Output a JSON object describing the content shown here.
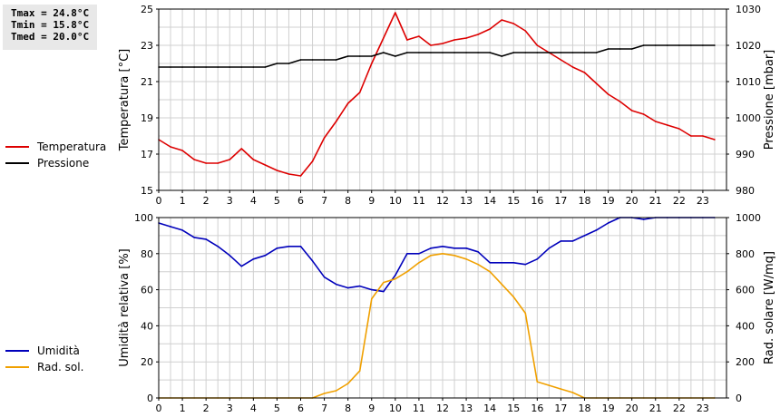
{
  "stats": {
    "tmax": "Tmax = 24.8°C",
    "tmin": "Tmin = 15.8°C",
    "tmed": "Tmed = 20.0°C"
  },
  "colors": {
    "temperature": "#dd0000",
    "pressure": "#000000",
    "humidity": "#0000bb",
    "solar": "#f0a000",
    "grid": "#d0d0d0"
  },
  "legend_top": [
    {
      "label": "Temperatura",
      "color": "#dd0000"
    },
    {
      "label": "Pressione",
      "color": "#000000"
    }
  ],
  "legend_bottom": [
    {
      "label": "Umidità",
      "color": "#0000bb"
    },
    {
      "label": "Rad. sol.",
      "color": "#f0a000"
    }
  ],
  "chart_data": [
    {
      "type": "line",
      "xlabel": "",
      "xlim": [
        0,
        24
      ],
      "xticks": [
        0,
        1,
        2,
        3,
        4,
        5,
        6,
        7,
        8,
        9,
        10,
        11,
        12,
        13,
        14,
        15,
        16,
        17,
        18,
        19,
        20,
        21,
        22,
        23
      ],
      "ylabel_left": "Temperatura [°C]",
      "ylim_left": [
        15,
        25
      ],
      "yticks_left": [
        15,
        17,
        19,
        21,
        23,
        25
      ],
      "ylabel_right": "Pressione [mbar]",
      "ylim_right": [
        980,
        1030
      ],
      "yticks_right": [
        980,
        990,
        1000,
        1010,
        1020,
        1030
      ],
      "grid": true,
      "series": [
        {
          "name": "Temperatura",
          "axis": "left",
          "color": "#dd0000",
          "x": [
            0,
            0.5,
            1,
            1.5,
            2,
            2.5,
            3,
            3.5,
            4,
            4.5,
            5,
            5.5,
            6,
            6.5,
            7,
            7.5,
            8,
            8.5,
            9,
            9.5,
            10,
            10.5,
            11,
            11.5,
            12,
            12.5,
            13,
            13.5,
            14,
            14.5,
            15,
            15.5,
            16,
            16.5,
            17,
            17.5,
            18,
            18.5,
            19,
            19.5,
            20,
            20.5,
            21,
            21.5,
            22,
            22.5,
            23,
            23.5
          ],
          "y": [
            17.8,
            17.4,
            17.2,
            16.7,
            16.5,
            16.5,
            16.7,
            17.3,
            16.7,
            16.4,
            16.1,
            15.9,
            15.8,
            16.6,
            17.9,
            18.8,
            19.8,
            20.4,
            22.0,
            23.4,
            24.8,
            23.3,
            23.5,
            23.0,
            23.1,
            23.3,
            23.4,
            23.6,
            23.9,
            24.4,
            24.2,
            23.8,
            23.0,
            22.6,
            22.2,
            21.8,
            21.5,
            20.9,
            20.3,
            19.9,
            19.4,
            19.2,
            18.8,
            18.6,
            18.4,
            18.0,
            18.0,
            17.8
          ]
        },
        {
          "name": "Pressione",
          "axis": "right",
          "color": "#000000",
          "x": [
            0,
            0.5,
            1,
            1.5,
            2,
            2.5,
            3,
            3.5,
            4,
            4.5,
            5,
            5.5,
            6,
            6.5,
            7,
            7.5,
            8,
            8.5,
            9,
            9.5,
            10,
            10.5,
            11,
            11.5,
            12,
            12.5,
            13,
            13.5,
            14,
            14.5,
            15,
            15.5,
            16,
            16.5,
            17,
            17.5,
            18,
            18.5,
            19,
            19.5,
            20,
            20.5,
            21,
            21.5,
            22,
            22.5,
            23,
            23.5
          ],
          "y": [
            1014,
            1014,
            1014,
            1014,
            1014,
            1014,
            1014,
            1014,
            1014,
            1014,
            1015,
            1015,
            1016,
            1016,
            1016,
            1016,
            1017,
            1017,
            1017,
            1018,
            1017,
            1018,
            1018,
            1018,
            1018,
            1018,
            1018,
            1018,
            1018,
            1017,
            1018,
            1018,
            1018,
            1018,
            1018,
            1018,
            1018,
            1018,
            1019,
            1019,
            1019,
            1020,
            1020,
            1020,
            1020,
            1020,
            1020,
            1020
          ]
        }
      ]
    },
    {
      "type": "line",
      "xlabel": "",
      "xlim": [
        0,
        24
      ],
      "xticks": [
        0,
        1,
        2,
        3,
        4,
        5,
        6,
        7,
        8,
        9,
        10,
        11,
        12,
        13,
        14,
        15,
        16,
        17,
        18,
        19,
        20,
        21,
        22,
        23
      ],
      "ylabel_left": "Umidità relativa [%]",
      "ylim_left": [
        0,
        100
      ],
      "yticks_left": [
        0,
        20,
        40,
        60,
        80,
        100
      ],
      "ylabel_right": "Rad. solare [W/mq]",
      "ylim_right": [
        0,
        1000
      ],
      "yticks_right": [
        0,
        200,
        400,
        600,
        800,
        1000
      ],
      "grid": true,
      "series": [
        {
          "name": "Umidità",
          "axis": "left",
          "color": "#0000bb",
          "x": [
            0,
            0.5,
            1,
            1.5,
            2,
            2.5,
            3,
            3.5,
            4,
            4.5,
            5,
            5.5,
            6,
            6.5,
            7,
            7.5,
            8,
            8.5,
            9,
            9.5,
            10,
            10.5,
            11,
            11.5,
            12,
            12.5,
            13,
            13.5,
            14,
            14.5,
            15,
            15.5,
            16,
            16.5,
            17,
            17.5,
            18,
            18.5,
            19,
            19.5,
            20,
            20.5,
            21,
            21.5,
            22,
            22.5,
            23,
            23.5
          ],
          "y": [
            97,
            95,
            93,
            89,
            88,
            84,
            79,
            73,
            77,
            79,
            83,
            84,
            84,
            76,
            67,
            63,
            61,
            62,
            60,
            59,
            68,
            80,
            80,
            83,
            84,
            83,
            83,
            81,
            75,
            75,
            75,
            74,
            77,
            83,
            87,
            87,
            90,
            93,
            97,
            100,
            100,
            99,
            100,
            100,
            100,
            100,
            100,
            100
          ]
        },
        {
          "name": "Rad. sol.",
          "axis": "right",
          "color": "#f0a000",
          "x": [
            0,
            0.5,
            1,
            1.5,
            2,
            2.5,
            3,
            3.5,
            4,
            4.5,
            5,
            5.5,
            6,
            6.5,
            7,
            7.5,
            8,
            8.5,
            9,
            9.5,
            10,
            10.5,
            11,
            11.5,
            12,
            12.5,
            13,
            13.5,
            14,
            14.5,
            15,
            15.5,
            16,
            16.5,
            17,
            17.5,
            18,
            18.5,
            19,
            19.5,
            20,
            20.5,
            21,
            21.5,
            22,
            22.5,
            23,
            23.5
          ],
          "y": [
            0,
            0,
            0,
            0,
            0,
            0,
            0,
            0,
            0,
            0,
            0,
            0,
            0,
            0,
            25,
            40,
            80,
            150,
            550,
            640,
            660,
            700,
            750,
            790,
            800,
            790,
            770,
            740,
            700,
            630,
            560,
            470,
            90,
            70,
            50,
            30,
            0,
            0,
            0,
            0,
            0,
            0,
            0,
            0,
            0,
            0,
            0,
            0
          ]
        }
      ]
    }
  ]
}
